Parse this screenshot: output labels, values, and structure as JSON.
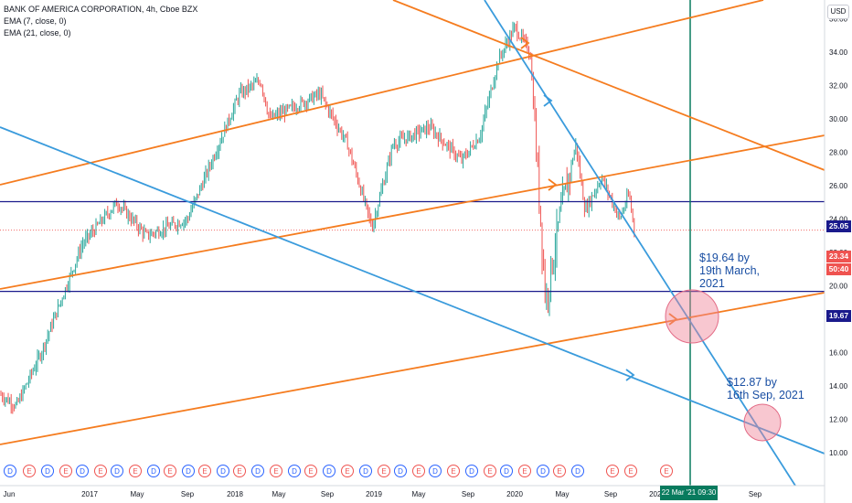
{
  "legend": {
    "title": "BANK OF AMERICA CORPORATION, 4h, Cboe BZX",
    "ema7": "EMA (7, close, 0)",
    "ema21": "EMA (21, close, 0)"
  },
  "currency": "USD",
  "price_labels": {
    "level_high": "25.05",
    "last_price": "23.34",
    "countdown": "50:40",
    "level_low": "19.67"
  },
  "annotations": {
    "first": "$19.64 by\n19th March,\n2021",
    "second": "$12.87 by\n16th Sep, 2021"
  },
  "cursor_time": "22 Mar '21  09:30",
  "colors": {
    "orange": "#f57c1f",
    "blue": "#3a9bdc",
    "navy": "#1a1a8c",
    "green_cursor": "#087b5e",
    "up_candle": "#26a69a",
    "down_candle": "#ef5350",
    "dividend": "#2962ff",
    "earnings": "#ef5350"
  },
  "chart_data": {
    "type": "candlestick",
    "title": "BANK OF AMERICA CORPORATION, 4h, Cboe BZX",
    "ylim": [
      10,
      38
    ],
    "y_ticks": [
      "10.00",
      "12.00",
      "14.00",
      "16.00",
      "18.00",
      "20.00",
      "22.00",
      "24.00",
      "26.00",
      "28.00",
      "30.00",
      "32.00",
      "34.00",
      "36.00"
    ],
    "x_ticks": [
      "Jun",
      "2017",
      "May",
      "Sep",
      "2018",
      "May",
      "Sep",
      "2019",
      "May",
      "Sep",
      "2020",
      "May",
      "Sep",
      "2021",
      "Sep"
    ],
    "price_path": [
      [
        "Jun 2016",
        13.5
      ],
      [
        "Oct 2016",
        12.8
      ],
      [
        "Nov 2016",
        16.0
      ],
      [
        "Dec 2016",
        22.5
      ],
      [
        "Mar 2017",
        25.0
      ],
      [
        "Jun 2017",
        23.0
      ],
      [
        "Sep 2017",
        24.0
      ],
      [
        "Nov 2017",
        27.0
      ],
      [
        "Jan 2018",
        31.5
      ],
      [
        "Mar 2018",
        32.3
      ],
      [
        "Apr 2018",
        30.0
      ],
      [
        "Aug 2018",
        31.5
      ],
      [
        "Oct 2018",
        28.5
      ],
      [
        "Dec 2018",
        23.5
      ],
      [
        "Feb 2019",
        28.5
      ],
      [
        "May 2019",
        29.5
      ],
      [
        "Aug 2019",
        27.5
      ],
      [
        "Oct 2019",
        29.0
      ],
      [
        "Dec 2019",
        33.5
      ],
      [
        "Jan 2020",
        35.5
      ],
      [
        "Feb 2020",
        34.0
      ],
      [
        "Mar 2020",
        19.0
      ],
      [
        "Apr 2020",
        24.0
      ],
      [
        "Jun 2020",
        28.5
      ],
      [
        "Jul 2020",
        24.5
      ],
      [
        "Aug 2020",
        26.5
      ],
      [
        "Sep 2020",
        24.0
      ],
      [
        "Oct 2020",
        25.5
      ],
      [
        "Nov 2020",
        23.34
      ]
    ],
    "horizontal_levels": [
      25.05,
      19.67
    ],
    "last_price": 23.34,
    "targets": [
      {
        "label": "$19.64 by 19th March, 2021",
        "value": 19.64
      },
      {
        "label": "$12.87 by 16th Sep, 2021",
        "value": 12.87
      }
    ],
    "event_markers": [
      "D",
      "E",
      "D",
      "E",
      "D",
      "E",
      "D",
      "E",
      "D",
      "E",
      "D",
      "E",
      "D",
      "E",
      "D",
      "E",
      "D",
      "E",
      "D",
      "E",
      "D",
      "E",
      "D",
      "E",
      "D",
      "E",
      "D",
      "E",
      "D",
      "E",
      "D",
      "E",
      "D",
      "E",
      "E"
    ]
  }
}
